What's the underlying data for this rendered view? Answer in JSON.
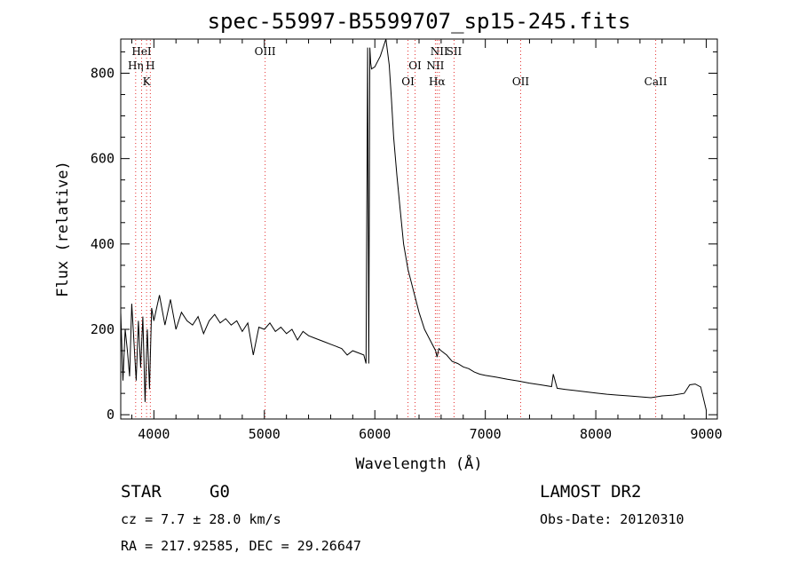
{
  "chart_data": {
    "type": "line",
    "title": "spec-55997-B5599707_sp15-245.fits",
    "xlabel": "Wavelength (Å)",
    "ylabel": "Flux (relative)",
    "xlim": [
      3700,
      9100
    ],
    "ylim": [
      -10,
      880
    ],
    "xticks": [
      4000,
      5000,
      6000,
      7000,
      8000,
      9000
    ],
    "xtick_labels": [
      "4000",
      "5000",
      "6000",
      "7000",
      "8000",
      "9000"
    ],
    "yticks": [
      0,
      200,
      400,
      600,
      800
    ],
    "ytick_labels": [
      "0",
      "200",
      "400",
      "600",
      "800"
    ],
    "grid": false,
    "series": [
      {
        "x": [
          3700,
          3720,
          3740,
          3760,
          3780,
          3800,
          3820,
          3840,
          3860,
          3880,
          3900,
          3920,
          3940,
          3960,
          3980,
          4000,
          4050,
          4100,
          4150,
          4200,
          4250,
          4300,
          4350,
          4400,
          4450,
          4500,
          4550,
          4600,
          4650,
          4700,
          4750,
          4800,
          4850,
          4900,
          4950,
          5000,
          5050,
          5100,
          5150,
          5200,
          5250,
          5300,
          5350,
          5400,
          5450,
          5500,
          5550,
          5600,
          5650,
          5700,
          5750,
          5800,
          5850,
          5900,
          5920,
          5935,
          5945,
          5955,
          5962,
          5970,
          6000,
          6050,
          6100,
          6130,
          6150,
          6170,
          6200,
          6230,
          6260,
          6300,
          6350,
          6400,
          6450,
          6500,
          6550,
          6563,
          6580,
          6600,
          6650,
          6700,
          6750,
          6800,
          6850,
          6900,
          6950,
          7000,
          7100,
          7200,
          7300,
          7400,
          7500,
          7600,
          7615,
          7650,
          7700,
          7800,
          7900,
          8000,
          8100,
          8200,
          8300,
          8400,
          8500,
          8600,
          8700,
          8800,
          8850,
          8900,
          8950,
          9000
        ],
        "y": [
          240,
          80,
          200,
          150,
          90,
          260,
          170,
          80,
          220,
          110,
          230,
          30,
          200,
          60,
          250,
          220,
          280,
          210,
          270,
          200,
          240,
          220,
          210,
          230,
          190,
          220,
          235,
          215,
          225,
          210,
          220,
          195,
          215,
          140,
          205,
          200,
          215,
          195,
          205,
          190,
          200,
          175,
          195,
          185,
          180,
          175,
          170,
          165,
          160,
          155,
          140,
          150,
          145,
          140,
          120,
          860,
          120,
          860,
          825,
          810,
          815,
          840,
          880,
          820,
          740,
          650,
          560,
          480,
          400,
          340,
          290,
          240,
          200,
          175,
          150,
          135,
          155,
          150,
          140,
          125,
          120,
          112,
          108,
          100,
          95,
          92,
          88,
          83,
          79,
          74,
          70,
          66,
          95,
          62,
          60,
          57,
          54,
          51,
          48,
          46,
          44,
          42,
          40,
          44,
          46,
          50,
          70,
          72,
          65,
          10
        ]
      }
    ],
    "spectral_lines": [
      {
        "name": "HeI",
        "x": 3889,
        "row": 0
      },
      {
        "name": "Hη",
        "x": 3835,
        "row": 1
      },
      {
        "name": "H",
        "x": 3968,
        "row": 1
      },
      {
        "name": "K",
        "x": 3934,
        "row": 2
      },
      {
        "name": "OIII",
        "x": 5007,
        "row": 0
      },
      {
        "name": "NII",
        "x": 6583,
        "row": 0
      },
      {
        "name": "SII",
        "x": 6717,
        "row": 0
      },
      {
        "name": "OI",
        "x": 6364,
        "row": 1
      },
      {
        "name": "NII",
        "x": 6548,
        "row": 1
      },
      {
        "name": "OI",
        "x": 6300,
        "row": 2
      },
      {
        "name": "Hα",
        "x": 6563,
        "row": 2
      },
      {
        "name": "OII",
        "x": 7320,
        "row": 2
      },
      {
        "name": "CaII",
        "x": 8542,
        "row": 2
      }
    ],
    "line_colors": {
      "curve": "#000000",
      "markers": "#e53030"
    }
  },
  "info": {
    "class_label": "STAR",
    "subclass": "G0",
    "survey": "LAMOST DR2",
    "cz": "cz = 7.7 ± 28.0 km/s",
    "obs_date": "Obs-Date: 20120310",
    "coords": "RA = 217.92585, DEC =  29.26647"
  }
}
